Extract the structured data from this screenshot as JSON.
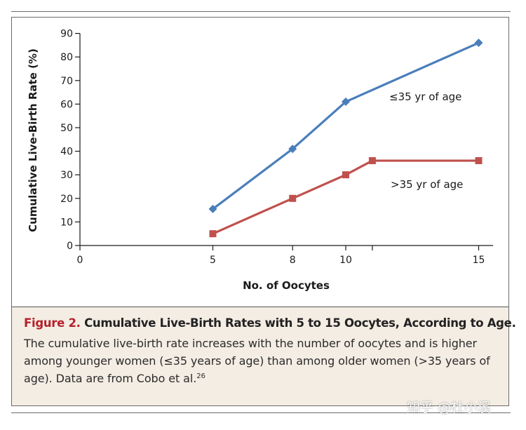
{
  "chart_data": {
    "type": "line",
    "xlabel": "No. of Oocytes",
    "ylabel": "Cumulative Live-Birth Rate (%)",
    "xlim": [
      0,
      15.5
    ],
    "ylim": [
      0,
      90
    ],
    "x_ticks": [
      0,
      5,
      8,
      10,
      15
    ],
    "y_ticks": [
      0,
      10,
      20,
      30,
      40,
      50,
      60,
      70,
      80,
      90
    ],
    "series": [
      {
        "name": "≤35 yr of age",
        "color": "#4a7ebb",
        "marker": "diamond",
        "x": [
          5,
          8,
          10,
          15
        ],
        "values": [
          15.5,
          41,
          61,
          86
        ]
      },
      {
        "name": ">35 yr of age",
        "color": "#c0504d",
        "marker": "square",
        "x": [
          5,
          8,
          10,
          11,
          15
        ],
        "values": [
          5,
          20,
          30,
          36,
          36
        ]
      }
    ]
  },
  "caption": {
    "figure_label": "Figure 2.",
    "title": "Cumulative Live-Birth Rates with 5 to 15 Oocytes, According to Age.",
    "body": "The cumulative live-birth rate increases with the number of oocytes and is higher among younger women (≤35 years of age) than among older women (>35 years of age). Data are from Cobo et al.",
    "reference": "26"
  },
  "watermark": "知乎 @杜小溪"
}
